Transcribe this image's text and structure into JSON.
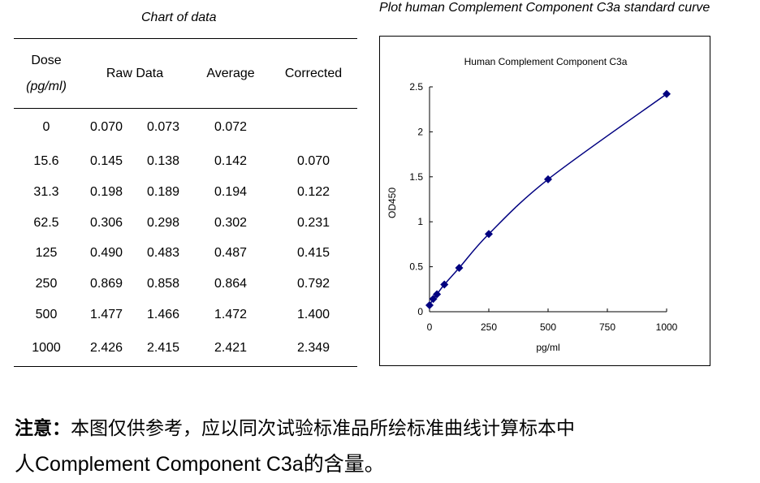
{
  "table_title": "Chart of data",
  "chart_heading": "Plot human Complement Component C3a standard curve",
  "table": {
    "headers": {
      "dose": "Dose",
      "dose_unit": "(pg/ml)",
      "raw": "Raw Data",
      "average": "Average",
      "corrected": "Corrected"
    },
    "rows": [
      [
        "0",
        "0.070",
        "0.073",
        "0.072",
        ""
      ],
      [
        "15.6",
        "0.145",
        "0.138",
        "0.142",
        "0.070"
      ],
      [
        "31.3",
        "0.198",
        "0.189",
        "0.194",
        "0.122"
      ],
      [
        "62.5",
        "0.306",
        "0.298",
        "0.302",
        "0.231"
      ],
      [
        "125",
        "0.490",
        "0.483",
        "0.487",
        "0.415"
      ],
      [
        "250",
        "0.869",
        "0.858",
        "0.864",
        "0.792"
      ],
      [
        "500",
        "1.477",
        "1.466",
        "1.472",
        "1.400"
      ],
      [
        "1000",
        "2.426",
        "2.415",
        "2.421",
        "2.349"
      ]
    ]
  },
  "chart_data": {
    "type": "line",
    "title": "Human Complement Component C3a",
    "xlabel": "pg/ml",
    "ylabel": "OD450",
    "x": [
      0,
      15.6,
      31.3,
      62.5,
      125,
      250,
      500,
      1000
    ],
    "y": [
      0.072,
      0.142,
      0.194,
      0.302,
      0.487,
      0.864,
      1.472,
      2.421
    ],
    "xlim": [
      0,
      1000
    ],
    "ylim": [
      0,
      2.5
    ],
    "xticks": [
      "0",
      "250",
      "500",
      "750",
      "1000"
    ],
    "yticks": [
      "0",
      "0.5",
      "1",
      "1.5",
      "2",
      "2.5"
    ],
    "grid": false,
    "color": "#000080"
  },
  "note": {
    "label": "注意：",
    "line1": "本图仅供参考，应以同次试验标准品所绘标准曲线计算标本中",
    "line2": "人Complement Component C3a的含量。"
  }
}
